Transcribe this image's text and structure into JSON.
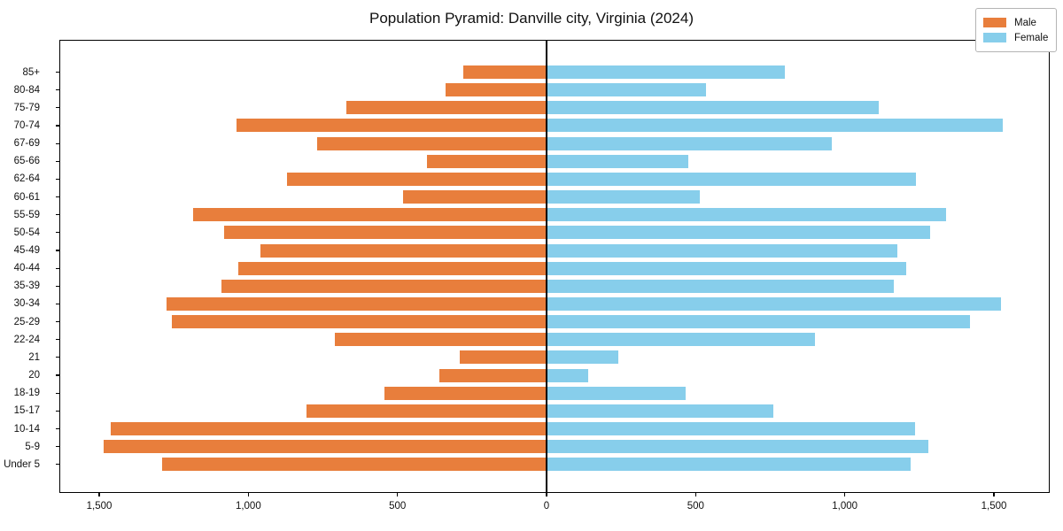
{
  "chart_data": {
    "type": "bar",
    "variant": "population-pyramid",
    "title": "Population Pyramid: Danville city, Virginia (2024)",
    "orientation": "horizontal",
    "grid": false,
    "categories": [
      "85+",
      "80-84",
      "75-79",
      "70-74",
      "67-69",
      "65-66",
      "62-64",
      "60-61",
      "55-59",
      "50-54",
      "45-49",
      "40-44",
      "35-39",
      "30-34",
      "25-29",
      "22-24",
      "21",
      "20",
      "18-19",
      "15-17",
      "10-14",
      "5-9",
      "Under 5"
    ],
    "series": [
      {
        "name": "Male",
        "side": "left",
        "color": "#e87e3c",
        "values": [
          280,
          340,
          670,
          1040,
          770,
          400,
          870,
          480,
          1185,
          1080,
          960,
          1035,
          1090,
          1275,
          1255,
          710,
          290,
          360,
          545,
          805,
          1460,
          1485,
          1290
        ]
      },
      {
        "name": "Female",
        "side": "right",
        "color": "#87ceeb",
        "values": [
          800,
          535,
          1115,
          1530,
          955,
          475,
          1240,
          515,
          1340,
          1285,
          1175,
          1205,
          1165,
          1525,
          1420,
          900,
          240,
          140,
          465,
          760,
          1235,
          1280,
          1220
        ]
      }
    ],
    "x_axis": {
      "tick_values": [
        -1500,
        -1000,
        -500,
        0,
        500,
        1000,
        1500
      ],
      "tick_labels": [
        "1,500",
        "1,000",
        "500",
        "0",
        "500",
        "1,000",
        "1,500"
      ],
      "max_per_side": 1690
    },
    "legend": {
      "position": "top-right",
      "entries": [
        "Male",
        "Female"
      ]
    }
  }
}
